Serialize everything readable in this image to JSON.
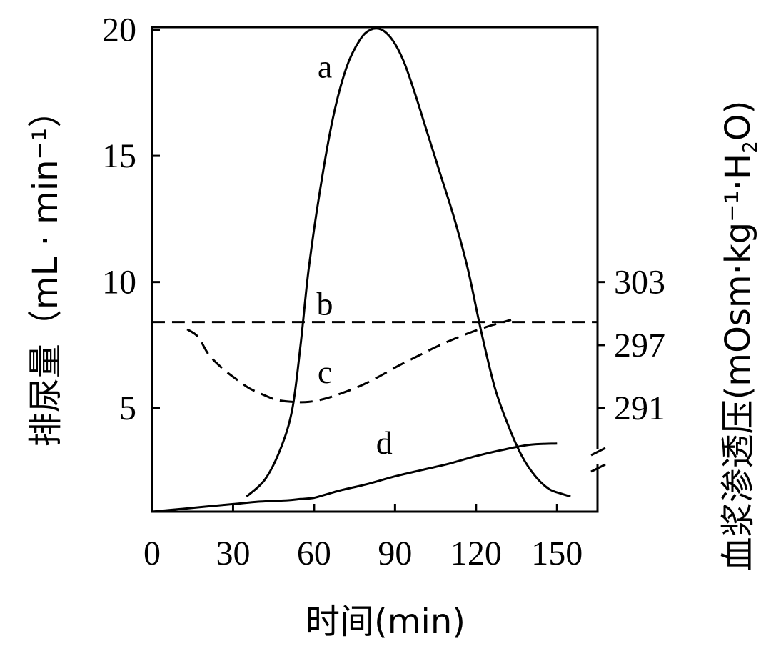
{
  "chart_data": {
    "type": "line",
    "xlabel": "时间(min)",
    "ylabel_left": "排尿量（mL · min⁻¹）",
    "ylabel_right_prefix": "血浆渗透压(mOsm·kg⁻¹·H",
    "ylabel_right_sub": "2",
    "ylabel_right_suffix": "O)",
    "x_ticks": [
      "0",
      "30",
      "60",
      "90",
      "120",
      "150"
    ],
    "left_y_ticks": [
      "5",
      "10",
      "15",
      "20"
    ],
    "right_y_ticks": [
      "291",
      "297",
      "303"
    ],
    "xlim": [
      0,
      165
    ],
    "left_ylim": [
      0.9,
      20.1
    ],
    "right_axis_reference": [
      [
        5,
        291
      ],
      [
        10,
        303
      ]
    ],
    "right_axis_break": true,
    "series": [
      {
        "label": "a",
        "axis": "left",
        "style": "solid",
        "x": [
          35,
          42,
          48,
          52,
          55,
          58,
          62,
          67,
          72,
          77,
          81,
          85,
          89,
          93,
          97,
          102,
          107,
          112,
          117,
          122,
          127,
          132,
          137,
          142,
          147,
          152,
          155
        ],
        "y": [
          1.5,
          2.2,
          3.5,
          5.0,
          7.5,
          10.5,
          13.5,
          16.5,
          18.5,
          19.6,
          20.0,
          20.0,
          19.6,
          18.8,
          17.6,
          15.9,
          14.2,
          12.5,
          10.5,
          8.0,
          5.8,
          4.3,
          3.1,
          2.3,
          1.8,
          1.6,
          1.5
        ]
      },
      {
        "label": "b",
        "axis": "right",
        "style": "dashed",
        "x": [
          0,
          165
        ],
        "y": [
          299.2,
          299.2
        ]
      },
      {
        "label": "c",
        "axis": "right",
        "style": "dashed",
        "x": [
          13,
          17,
          21,
          26,
          31,
          36,
          41,
          46,
          52,
          58,
          64,
          70,
          77,
          84,
          91,
          98,
          105,
          112,
          119,
          126,
          133
        ],
        "y": [
          298.5,
          297.8,
          296.1,
          294.8,
          293.8,
          292.9,
          292.3,
          291.8,
          291.6,
          291.6,
          291.9,
          292.4,
          293.1,
          294.0,
          295.0,
          295.9,
          296.8,
          297.6,
          298.3,
          298.9,
          299.4
        ]
      },
      {
        "label": "d",
        "axis": "left",
        "style": "solid",
        "x": [
          0,
          10,
          20,
          30,
          40,
          50,
          55,
          60,
          65,
          70,
          80,
          90,
          100,
          110,
          120,
          130,
          140,
          150
        ],
        "y": [
          0.9,
          1.0,
          1.1,
          1.2,
          1.3,
          1.35,
          1.4,
          1.45,
          1.6,
          1.75,
          2.0,
          2.3,
          2.55,
          2.8,
          3.1,
          3.35,
          3.55,
          3.6
        ]
      }
    ],
    "curve_labels": [
      {
        "text": "a",
        "x": 64,
        "y": 18.1
      },
      {
        "text": "b",
        "x": 64,
        "y": 8.7
      },
      {
        "text": "c",
        "x": 64,
        "y": 6.0
      },
      {
        "text": "d",
        "x": 86,
        "y": 3.2
      }
    ]
  }
}
